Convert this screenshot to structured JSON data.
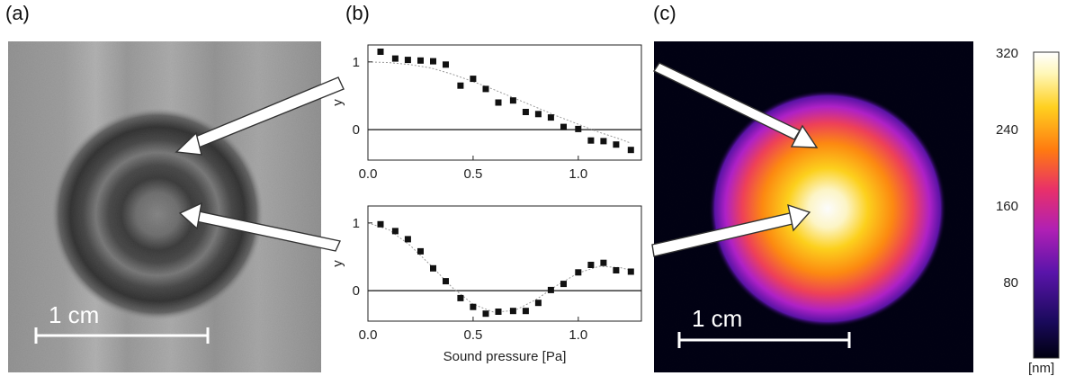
{
  "panels": {
    "a_label": "(a)",
    "b_label": "(b)",
    "c_label": "(c)"
  },
  "panel_a": {
    "scale_label": "1 cm"
  },
  "panel_c": {
    "scale_label": "1 cm",
    "colorbar": {
      "ticks": [
        "320",
        "240",
        "160",
        "80"
      ],
      "unit": "[nm]",
      "colors": [
        "#000010",
        "#3a0a8a",
        "#9a18c8",
        "#e8306a",
        "#ff7a10",
        "#ffd020",
        "#fff8c0",
        "#ffffff"
      ]
    }
  },
  "chart_data": [
    {
      "type": "scatter",
      "panel": "b-top",
      "x": [
        0.06,
        0.13,
        0.19,
        0.25,
        0.31,
        0.37,
        0.44,
        0.5,
        0.56,
        0.62,
        0.69,
        0.75,
        0.81,
        0.87,
        0.93,
        1.0,
        1.06,
        1.12,
        1.18,
        1.25
      ],
      "y": [
        1.15,
        1.05,
        1.03,
        1.02,
        1.01,
        0.96,
        0.65,
        0.75,
        0.6,
        0.4,
        0.43,
        0.26,
        0.23,
        0.18,
        0.04,
        0.01,
        -0.16,
        -0.17,
        -0.22,
        -0.3
      ],
      "fit_x": [
        0.0,
        0.1,
        0.2,
        0.3,
        0.4,
        0.5,
        0.6,
        0.7,
        0.8,
        0.9,
        1.0,
        1.1,
        1.2,
        1.25
      ],
      "fit_y": [
        1.0,
        0.99,
        0.96,
        0.91,
        0.82,
        0.71,
        0.59,
        0.46,
        0.33,
        0.2,
        0.08,
        -0.04,
        -0.14,
        -0.2
      ],
      "xlim": [
        0.0,
        1.3
      ],
      "ylim": [
        -0.45,
        1.25
      ],
      "xticks": [
        "0.0",
        "0.5",
        "1.0"
      ],
      "yticks": [
        "1",
        "0"
      ],
      "ylabel": "y",
      "xlabel": ""
    },
    {
      "type": "scatter",
      "panel": "b-bottom",
      "x": [
        0.06,
        0.13,
        0.19,
        0.25,
        0.31,
        0.37,
        0.44,
        0.5,
        0.56,
        0.62,
        0.69,
        0.75,
        0.81,
        0.87,
        0.93,
        1.0,
        1.06,
        1.12,
        1.18,
        1.25
      ],
      "y": [
        0.98,
        0.88,
        0.76,
        0.58,
        0.33,
        0.14,
        -0.11,
        -0.24,
        -0.34,
        -0.31,
        -0.3,
        -0.3,
        -0.18,
        0.01,
        0.1,
        0.27,
        0.38,
        0.41,
        0.3,
        0.28
      ],
      "fit_x": [
        0.0,
        0.1,
        0.2,
        0.3,
        0.4,
        0.5,
        0.6,
        0.7,
        0.8,
        0.9,
        1.0,
        1.1,
        1.2,
        1.25
      ],
      "fit_y": [
        1.0,
        0.9,
        0.67,
        0.37,
        0.05,
        -0.2,
        -0.32,
        -0.29,
        -0.13,
        0.08,
        0.26,
        0.36,
        0.34,
        0.3
      ],
      "xlim": [
        0.0,
        1.3
      ],
      "ylim": [
        -0.45,
        1.25
      ],
      "xticks": [
        "0.0",
        "0.5",
        "1.0"
      ],
      "yticks": [
        "1",
        "0"
      ],
      "ylabel": "y",
      "xlabel": "Sound pressure [Pa]"
    }
  ]
}
